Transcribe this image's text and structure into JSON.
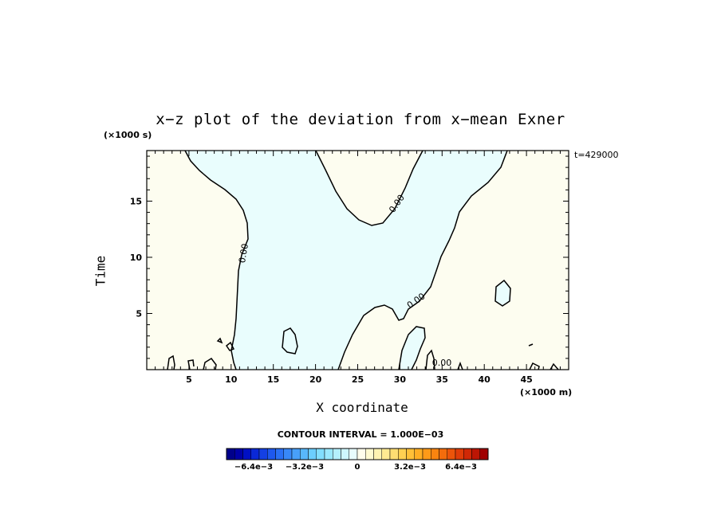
{
  "chart_data": {
    "type": "heatmap",
    "title": "x−z plot of the deviation from x−mean Exner",
    "xlabel": "X coordinate",
    "ylabel": "Time",
    "x_unit": "(×1000 m)",
    "y_unit": "(×1000 s)",
    "time_label": "t=429000",
    "xlim": [
      0,
      50
    ],
    "ylim": [
      0,
      19.5
    ],
    "x_ticks": [
      "5",
      "10",
      "15",
      "20",
      "25",
      "30",
      "35",
      "40",
      "45"
    ],
    "y_ticks": [
      "5",
      "10",
      "15"
    ],
    "contour_labels": [
      "0.00",
      "0.00",
      "0.00",
      "0.00"
    ],
    "contour_level": 0.0,
    "contour_interval_text": "CONTOUR INTERVAL = 1.000E−03",
    "regions": [
      {
        "sign": "positive",
        "color": "#fdfdf0"
      },
      {
        "sign": "negative",
        "color": "#e9fdfd"
      }
    ],
    "colorbar": {
      "range": [
        -0.008,
        0.008
      ],
      "tick_labels": [
        "−6.4e−3",
        "−3.2e−3",
        "0",
        "3.2e−3",
        "6.4e−3"
      ],
      "colors": [
        "#00008b",
        "#0000a8",
        "#0010c4",
        "#0a28d6",
        "#1440e4",
        "#1e58ee",
        "#2a70f4",
        "#3888f8",
        "#48a0fa",
        "#58b8fc",
        "#6ccefd",
        "#82defd",
        "#9ae8fd",
        "#b4f0fe",
        "#cef7fe",
        "#e8fdfe",
        "#fefdec",
        "#fefad0",
        "#fef3b2",
        "#feea92",
        "#fede72",
        "#fed052",
        "#fec038",
        "#feae24",
        "#fe9a18",
        "#fa8410",
        "#f46c0c",
        "#ec540a",
        "#e03c08",
        "#d02806",
        "#bc1604",
        "#a00000"
      ]
    }
  }
}
